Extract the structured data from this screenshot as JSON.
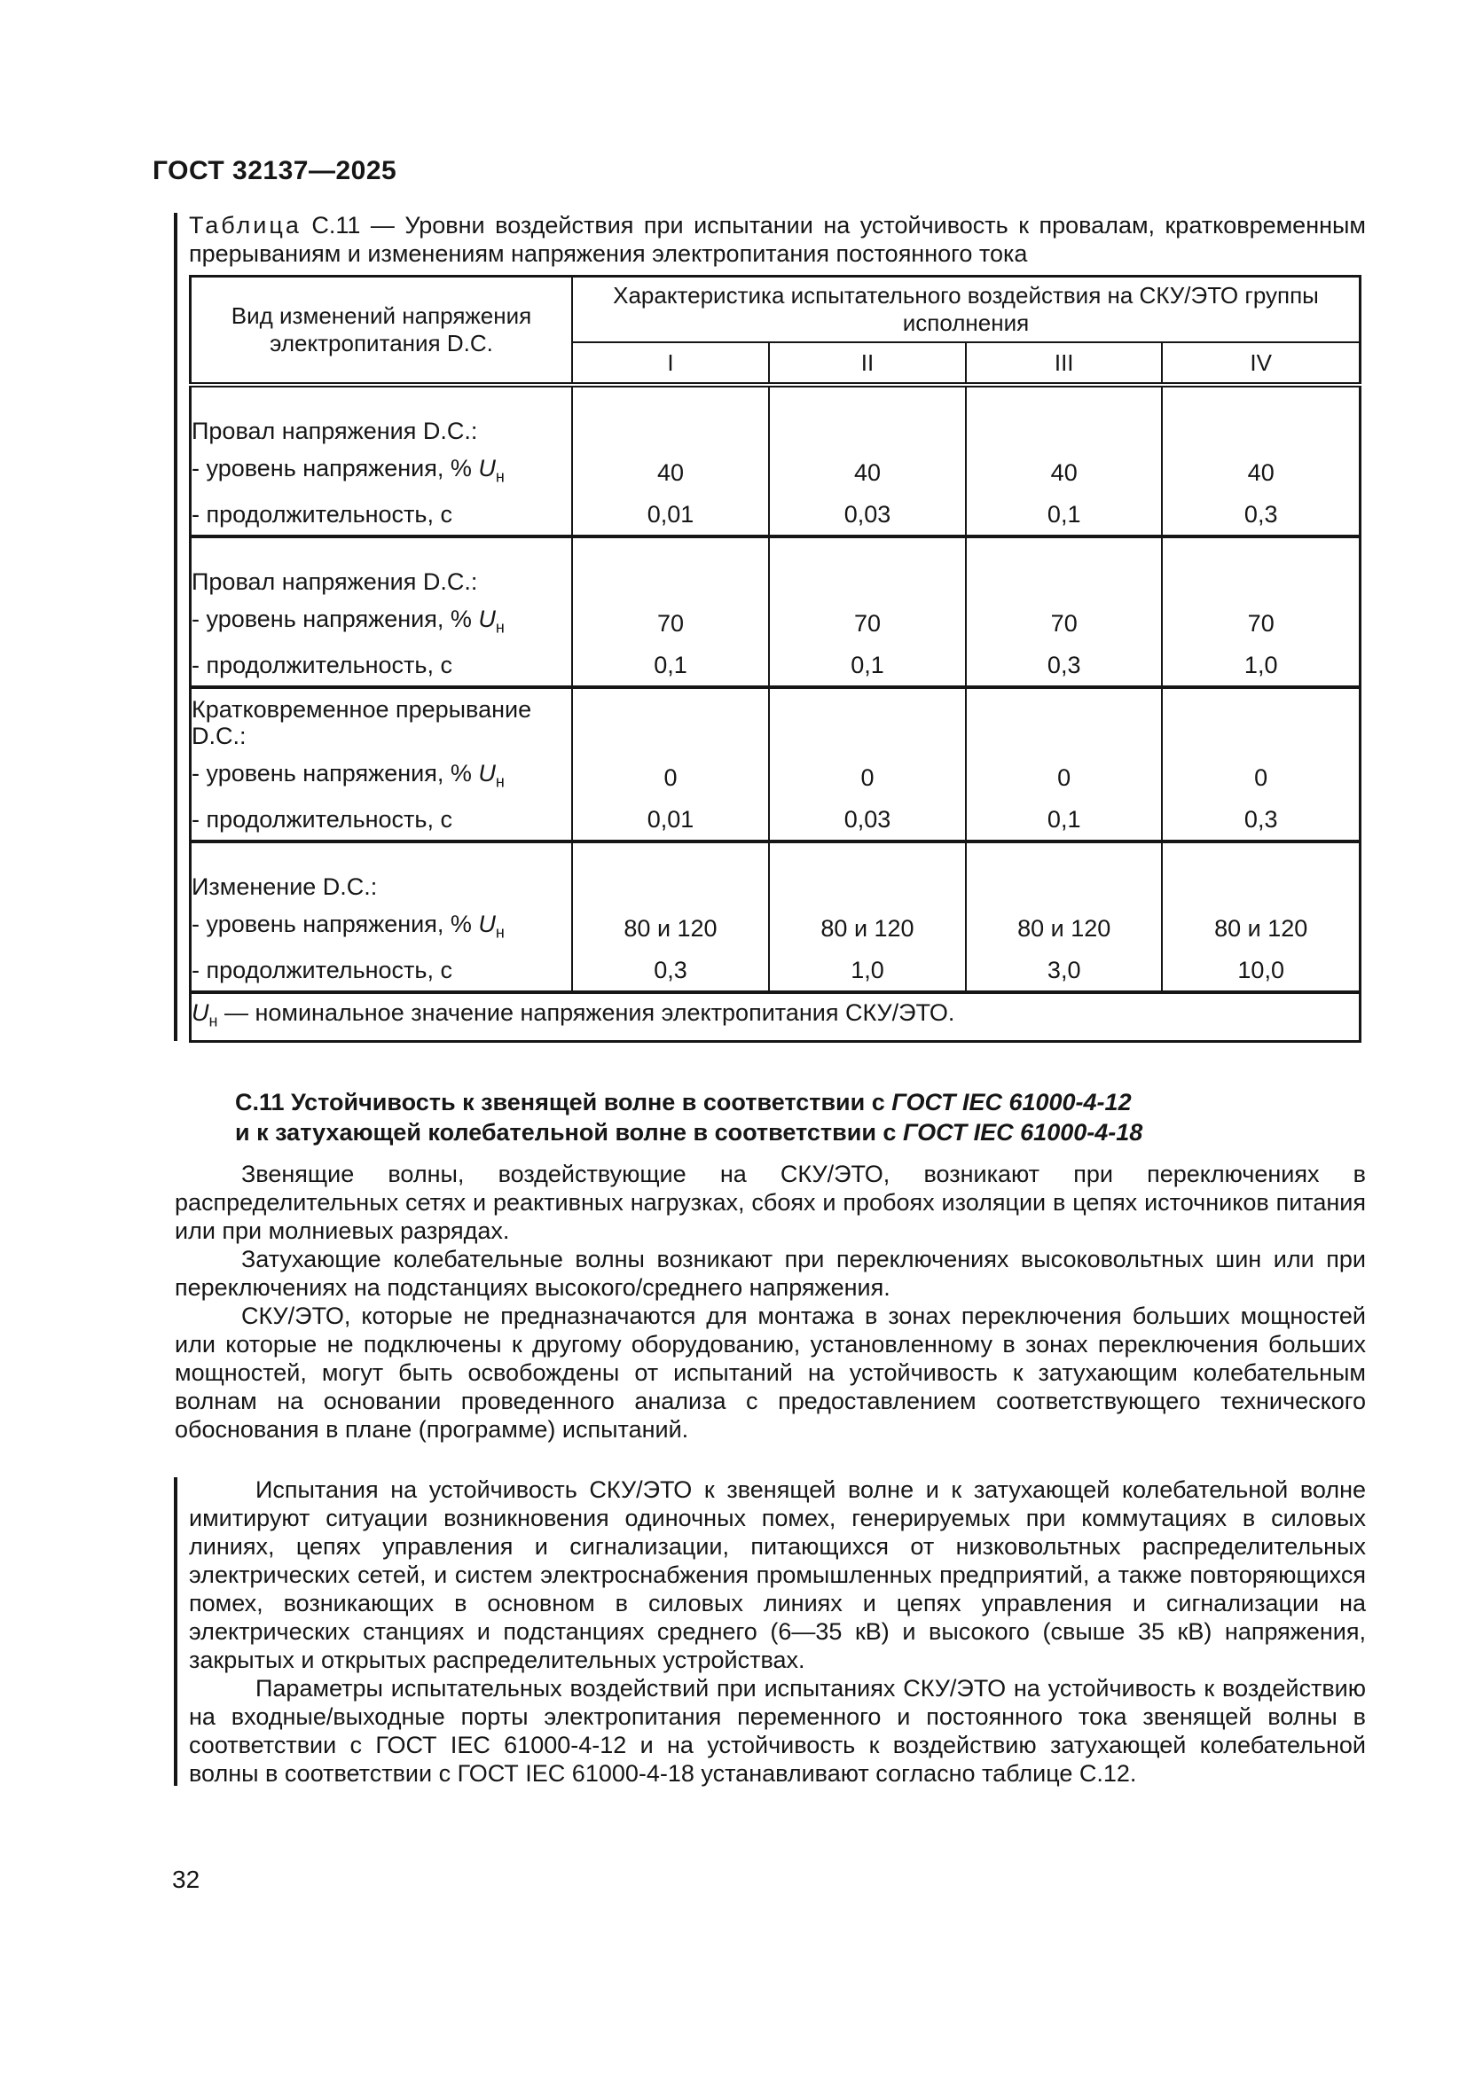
{
  "doc": {
    "header": "ГОСТ 32137—2025",
    "page_number": "32"
  },
  "table": {
    "caption_word": "Таблица",
    "caption_rest": " С.11 — Уровни воздействия при испытании на устойчивость к провалам, кратковременным прерываниям и изменениям напряжения электропитания постоянного тока",
    "col1_header": "Вид изменений напряжения электропитания D.C.",
    "group_header": "Характеристика испытательного воздействия на СКУ/ЭТО группы исполнения",
    "subcolumns": [
      "I",
      "II",
      "III",
      "IV"
    ],
    "sections": [
      {
        "title": "Провал напряжения D.C.:",
        "level_row": {
          "pre": "- уровень напряжения, % ",
          "sym": "U",
          "sub": "н",
          "values": [
            "40",
            "40",
            "40",
            "40"
          ]
        },
        "duration_row": {
          "label": "- продолжительность, с",
          "values": [
            "0,01",
            "0,03",
            "0,1",
            "0,3"
          ]
        }
      },
      {
        "title": "Провал напряжения D.C.:",
        "level_row": {
          "pre": "- уровень напряжения, % ",
          "sym": "U",
          "sub": "н",
          "values": [
            "70",
            "70",
            "70",
            "70"
          ]
        },
        "duration_row": {
          "label": "- продолжительность, с",
          "values": [
            "0,1",
            "0,1",
            "0,3",
            "1,0"
          ]
        }
      },
      {
        "title": "Кратковременное прерывание D.C.:",
        "level_row": {
          "pre": "- уровень напряжения, % ",
          "sym": "U",
          "sub": "н",
          "values": [
            "0",
            "0",
            "0",
            "0"
          ]
        },
        "duration_row": {
          "label": "- продолжительность, с",
          "values": [
            "0,01",
            "0,03",
            "0,1",
            "0,3"
          ]
        }
      },
      {
        "title": "Изменение D.C.:",
        "level_row": {
          "pre": "- уровень напряжения, % ",
          "sym": "U",
          "sub": "н",
          "values": [
            "80 и 120",
            "80 и 120",
            "80 и 120",
            "80 и 120"
          ]
        },
        "duration_row": {
          "label": "- продолжительность, с",
          "values": [
            "0,3",
            "1,0",
            "3,0",
            "10,0"
          ]
        }
      }
    ],
    "footnote": {
      "sym": "U",
      "sub": "н",
      "rest": " — номинальное значение напряжения электропитания СКУ/ЭТО."
    }
  },
  "section": {
    "heading_line1_pre": "С.11 Устойчивость к звенящей волне в соответствии с ",
    "heading_line1_ref": "ГОСТ IEC 61000-4-12",
    "heading_line2_pre": "и к затухающей колебательной волне в соответствии с ",
    "heading_line2_ref": "ГОСТ IEC 61000-4-18",
    "paragraphs": [
      "Звенящие волны, воздействующие на СКУ/ЭТО, возникают при переключениях в распределительных сетях и реактивных нагрузках, сбоях и пробоях изоляции в цепях источников питания или при молниевых разрядах.",
      "Затухающие колебательные волны возникают при переключениях высоковольтных шин или при переключениях на подстанциях высокого/среднего напряжения.",
      "СКУ/ЭТО, которые не предназначаются для монтажа в зонах переключения больших мощностей или которые не подключены к другому оборудованию, установленному в зонах переключения больших мощностей, могут быть освобождены от испытаний на устойчивость к затухающим колебательным волнам на основании проведенного анализа с предоставлением соответствующего технического обоснования в плане (программе) испытаний."
    ],
    "marked_paragraphs": [
      "Испытания на устойчивость СКУ/ЭТО к звенящей волне и к затухающей колебательной волне имитируют ситуации возникновения одиночных помех, генерируемых при коммутациях в силовых линиях, цепях управления и сигнализации, питающихся от низковольтных распределительных электрических сетей, и систем электроснабжения промышленных предприятий, а также повторяющихся помех, возникающих в основном в силовых линиях и цепях управления и сигнализации на электрических станциях и подстанциях среднего (6—35 кВ) и высокого (свыше 35 кВ) напряжения, закрытых и открытых распределительных устройствах.",
      "Параметры испытательных воздействий при испытаниях СКУ/ЭТО на устойчивость к воздействию на входные/выходные порты электропитания переменного и постоянного тока звенящей волны в соответствии с ГОСТ IEC 61000-4-12 и на устойчивость к воздействию затухающей колебательной волны в соответствии с ГОСТ IEC 61000-4-18 устанавливают согласно таблице С.12."
    ]
  }
}
